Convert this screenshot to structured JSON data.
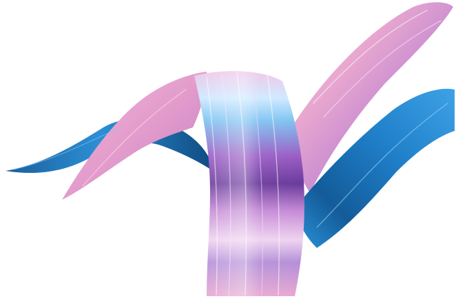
{
  "colors": {
    "background": "#ffffff",
    "pink": "#e7a6cf",
    "pink_light": "#f4c9e3",
    "violet": "#9a5cc4",
    "purple_dark": "#6a3a9c",
    "blue": "#2f8fd6",
    "blue_dark": "#144f86",
    "cyan_highlight": "#bfe7ff"
  },
  "icons": {
    "artwork": "abstract-3d-ribbon-swirl"
  }
}
